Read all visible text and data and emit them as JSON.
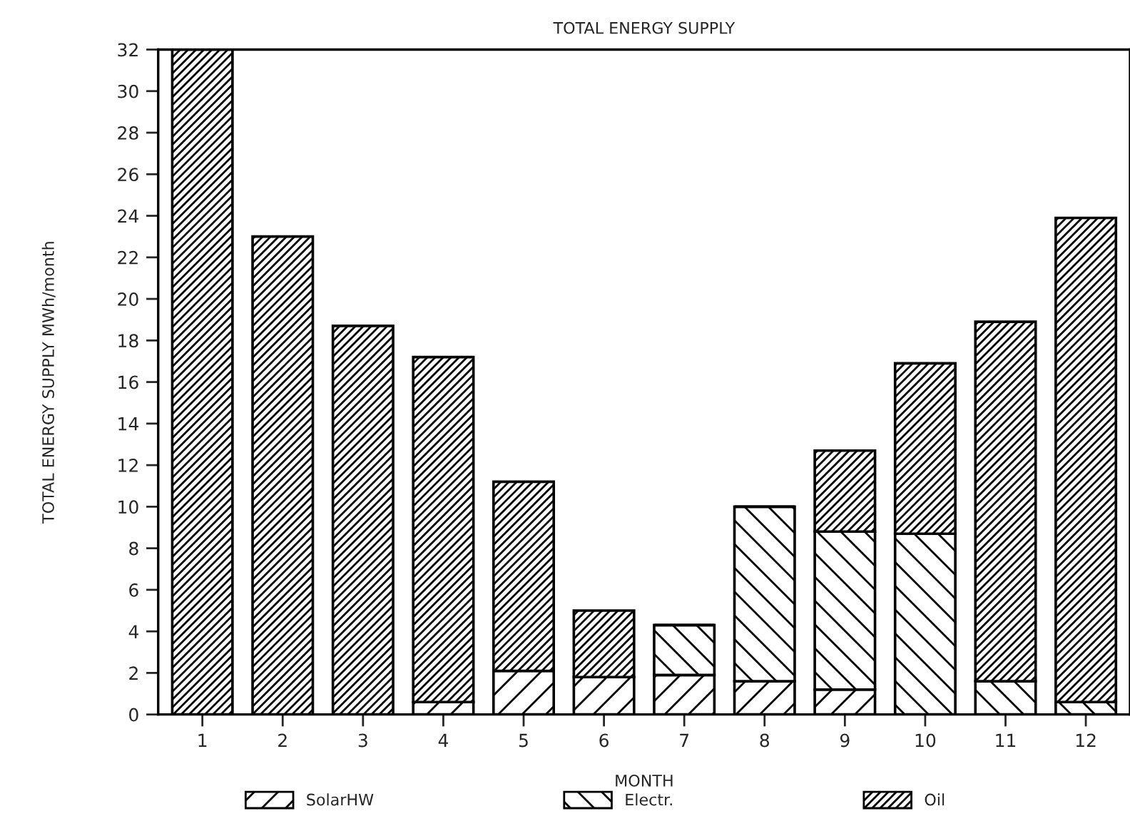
{
  "chart_data": {
    "type": "bar",
    "title": "TOTAL ENERGY SUPPLY",
    "xlabel": "MONTH",
    "ylabel": "TOTAL ENERGY SUPPLY MWh/month",
    "categories": [
      "1",
      "2",
      "3",
      "4",
      "5",
      "6",
      "7",
      "8",
      "9",
      "10",
      "11",
      "12"
    ],
    "stacked": true,
    "series": [
      {
        "name": "SolarHW",
        "color": "#000000",
        "values": [
          0,
          0,
          null,
          0.6,
          2.1,
          1.8,
          1.9,
          1.6,
          1.2,
          null,
          0,
          0
        ]
      },
      {
        "name": "Electr.",
        "color": "#000000",
        "values": [
          0,
          0,
          0,
          0,
          0,
          0,
          2.4,
          8.4,
          7.6,
          8.7,
          1.6,
          0.6
        ]
      },
      {
        "name": "Oil",
        "color": "#000000",
        "values": [
          32,
          23,
          18.7,
          16.6,
          9.1,
          3.2,
          0,
          0,
          3.9,
          8.2,
          17.3,
          23.3
        ]
      }
    ],
    "ylim": [
      0,
      32
    ],
    "yticks": [
      0,
      2,
      4,
      6,
      8,
      10,
      12,
      14,
      16,
      18,
      20,
      22,
      24,
      26,
      28,
      30,
      32
    ],
    "grid": false,
    "legend": "bottom"
  }
}
